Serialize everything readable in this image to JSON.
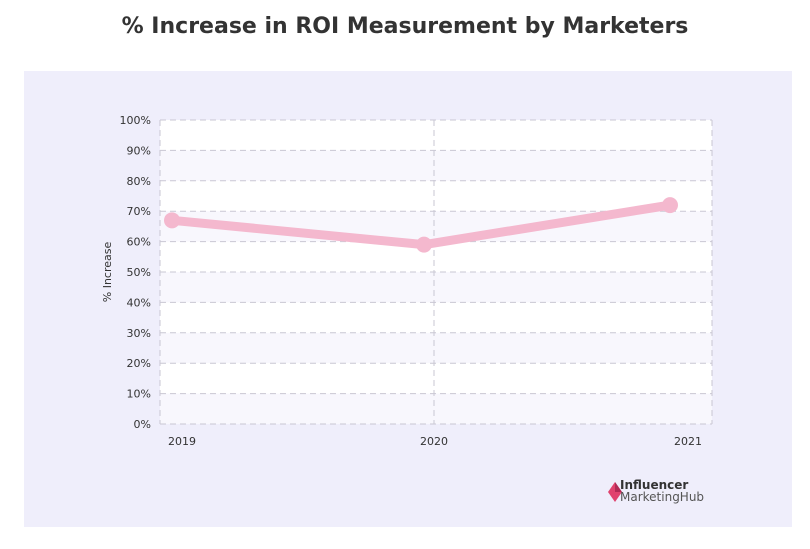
{
  "chart_data": {
    "type": "line",
    "title": "% Increase in ROI Measurement by Marketers",
    "xlabel": "",
    "ylabel": "% Increase",
    "categories": [
      "2019",
      "2020",
      "2021"
    ],
    "values": [
      67,
      59,
      72
    ],
    "ylim": [
      0,
      100
    ],
    "yticks": [
      "0%",
      "10%",
      "20%",
      "30%",
      "40%",
      "50%",
      "60%",
      "70%",
      "80%",
      "90%",
      "100%"
    ],
    "grid": true,
    "line_color": "#f4b8ce",
    "background_color": "#efeefb"
  },
  "branding": {
    "line1": "Influencer",
    "line2": "MarketingHub",
    "color": "#e0426e"
  }
}
